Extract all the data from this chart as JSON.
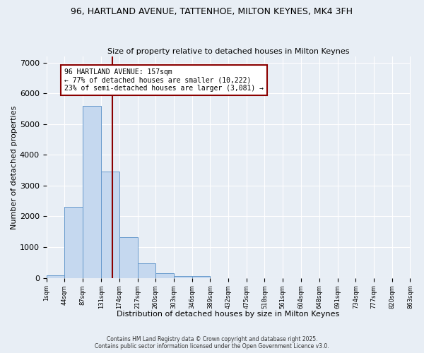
{
  "title_line1": "96, HARTLAND AVENUE, TATTENHOE, MILTON KEYNES, MK4 3FH",
  "title_line2": "Size of property relative to detached houses in Milton Keynes",
  "xlabel": "Distribution of detached houses by size in Milton Keynes",
  "ylabel": "Number of detached properties",
  "bin_edges": [
    1,
    44,
    87,
    131,
    174,
    217,
    260,
    303,
    346,
    389,
    432,
    475,
    518,
    561,
    604,
    648,
    691,
    734,
    777,
    820,
    863
  ],
  "bar_heights": [
    75,
    2300,
    5600,
    3450,
    1320,
    460,
    155,
    65,
    50,
    0,
    0,
    0,
    0,
    0,
    0,
    0,
    0,
    0,
    0,
    0
  ],
  "bar_color": "#c5d8ef",
  "bar_edgecolor": "#6699cc",
  "vline_x": 157,
  "vline_color": "#8b0000",
  "annotation_text": "96 HARTLAND AVENUE: 157sqm\n← 77% of detached houses are smaller (10,222)\n23% of semi-detached houses are larger (3,081) →",
  "annotation_box_color": "white",
  "annotation_box_edgecolor": "#8b0000",
  "ylim": [
    0,
    7200
  ],
  "yticks": [
    0,
    1000,
    2000,
    3000,
    4000,
    5000,
    6000,
    7000
  ],
  "tick_labels": [
    "1sqm",
    "44sqm",
    "87sqm",
    "131sqm",
    "174sqm",
    "217sqm",
    "260sqm",
    "303sqm",
    "346sqm",
    "389sqm",
    "432sqm",
    "475sqm",
    "518sqm",
    "561sqm",
    "604sqm",
    "648sqm",
    "691sqm",
    "734sqm",
    "777sqm",
    "820sqm",
    "863sqm"
  ],
  "footer_line1": "Contains HM Land Registry data © Crown copyright and database right 2025.",
  "footer_line2": "Contains public sector information licensed under the Open Government Licence v3.0.",
  "bg_color": "#e8eef5",
  "grid_color": "white"
}
